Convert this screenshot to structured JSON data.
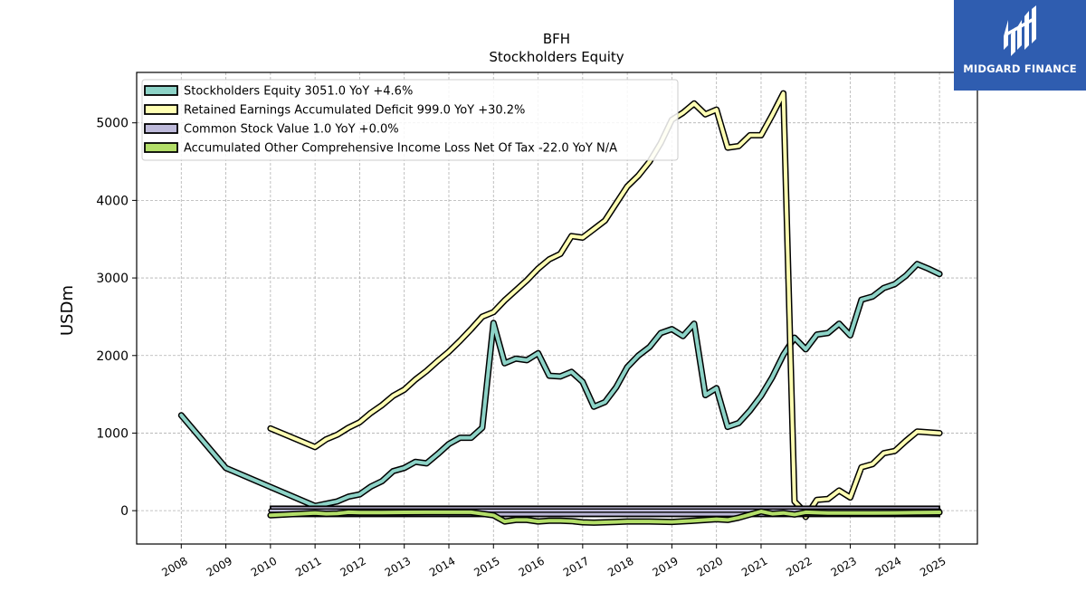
{
  "title": "BFH",
  "subtitle": "Stockholders  Equity",
  "brand": {
    "name": "MIDGARD FINANCE",
    "color": "#2f5db0"
  },
  "chart_data": {
    "type": "line",
    "ylabel": "USDm",
    "xlabel": "",
    "xlim": [
      2007.0,
      2025.85
    ],
    "ylim": [
      -430,
      5650
    ],
    "yticks": [
      0,
      1000,
      2000,
      3000,
      4000,
      5000
    ],
    "xticks": [
      2008,
      2009,
      2010,
      2011,
      2012,
      2013,
      2014,
      2015,
      2016,
      2017,
      2018,
      2019,
      2020,
      2021,
      2022,
      2023,
      2024,
      2025
    ],
    "grid": true,
    "legend_position": "top-left",
    "series": [
      {
        "name": "Stockholders Equity  3051.0 YoY +4.6%",
        "color": "#8dd3c7",
        "x": [
          2008.0,
          2009.0,
          2011.0,
          2011.5,
          2011.75,
          2012.0,
          2012.25,
          2012.5,
          2012.75,
          2013.0,
          2013.25,
          2013.5,
          2013.75,
          2014.0,
          2014.25,
          2014.5,
          2014.75,
          2015.0,
          2015.25,
          2015.5,
          2015.75,
          2016.0,
          2016.25,
          2016.5,
          2016.75,
          2017.0,
          2017.25,
          2017.5,
          2017.75,
          2018.0,
          2018.25,
          2018.5,
          2018.75,
          2019.0,
          2019.25,
          2019.5,
          2019.75,
          2020.0,
          2020.25,
          2020.5,
          2020.75,
          2021.0,
          2021.25,
          2021.5,
          2021.75,
          2022.0,
          2022.25,
          2022.5,
          2022.75,
          2023.0,
          2023.25,
          2023.5,
          2023.75,
          2024.0,
          2024.25,
          2024.5,
          2024.75,
          2025.0
        ],
        "y": [
          1230,
          550,
          60,
          120,
          180,
          210,
          310,
          380,
          510,
          550,
          630,
          610,
          730,
          860,
          940,
          940,
          1070,
          2420,
          1900,
          1960,
          1940,
          2030,
          1740,
          1730,
          1790,
          1660,
          1340,
          1400,
          1590,
          1850,
          2000,
          2110,
          2290,
          2340,
          2250,
          2410,
          1490,
          1580,
          1080,
          1130,
          1290,
          1480,
          1720,
          2010,
          2230,
          2080,
          2270,
          2290,
          2410,
          2260,
          2720,
          2760,
          2870,
          2920,
          3030,
          3180,
          3120,
          3051
        ]
      },
      {
        "name": "Retained Earnings Accumulated Deficit  999.0 YoY +30.2%",
        "color": "#ffffb3",
        "x": [
          2010.0,
          2011.0,
          2011.25,
          2011.5,
          2011.75,
          2012.0,
          2012.25,
          2012.5,
          2012.75,
          2013.0,
          2013.25,
          2013.5,
          2013.75,
          2014.0,
          2014.25,
          2014.5,
          2014.75,
          2015.0,
          2015.25,
          2015.5,
          2015.75,
          2016.0,
          2016.25,
          2016.5,
          2016.75,
          2017.0,
          2017.25,
          2017.5,
          2017.75,
          2018.0,
          2018.25,
          2018.5,
          2018.75,
          2019.0,
          2019.25,
          2019.5,
          2019.75,
          2020.0,
          2020.25,
          2020.5,
          2020.75,
          2021.0,
          2021.25,
          2021.5,
          2021.75,
          2021.9,
          2022.0,
          2022.25,
          2022.5,
          2022.75,
          2023.0,
          2023.25,
          2023.5,
          2023.75,
          2024.0,
          2024.25,
          2024.5,
          2024.75,
          2025.0
        ],
        "y": [
          1060,
          820,
          920,
          980,
          1070,
          1140,
          1260,
          1360,
          1480,
          1560,
          1690,
          1800,
          1930,
          2050,
          2190,
          2340,
          2500,
          2560,
          2710,
          2840,
          2970,
          3120,
          3240,
          3310,
          3540,
          3520,
          3630,
          3740,
          3960,
          4180,
          4320,
          4500,
          4740,
          5040,
          5130,
          5250,
          5110,
          5170,
          4680,
          4700,
          4840,
          4840,
          5100,
          5380,
          120,
          30,
          -80,
          140,
          150,
          260,
          170,
          560,
          600,
          740,
          770,
          900,
          1020,
          1010,
          999
        ]
      },
      {
        "name": "Common Stock Value  1.0 YoY +0.0%",
        "color": "#bebada",
        "x": [
          2010.0,
          2011.0,
          2012.0,
          2013.0,
          2014.0,
          2015.0,
          2016.0,
          2017.0,
          2018.0,
          2019.0,
          2020.0,
          2021.0,
          2022.0,
          2023.0,
          2024.0,
          2025.0
        ],
        "y": [
          1,
          1,
          1,
          1,
          1,
          1,
          1,
          1,
          1,
          1,
          1,
          1,
          1,
          1,
          1,
          1
        ]
      },
      {
        "name": "Accumulated Other Comprehensive Income Loss Net Of Tax  -22.0 YoY N/A",
        "color": "#b3de69",
        "x": [
          2010.0,
          2011.0,
          2011.25,
          2011.5,
          2011.75,
          2012.0,
          2012.5,
          2013.0,
          2013.5,
          2014.0,
          2014.5,
          2015.0,
          2015.25,
          2015.5,
          2015.75,
          2016.0,
          2016.25,
          2016.5,
          2016.75,
          2017.0,
          2017.25,
          2017.5,
          2017.75,
          2018.0,
          2018.5,
          2019.0,
          2019.5,
          2020.0,
          2020.25,
          2020.5,
          2020.75,
          2021.0,
          2021.25,
          2021.5,
          2021.75,
          2022.0,
          2022.5,
          2023.0,
          2023.5,
          2024.0,
          2024.5,
          2025.0
        ],
        "y": [
          -60,
          -30,
          -40,
          -35,
          -20,
          -25,
          -25,
          -22,
          -20,
          -20,
          -20,
          -60,
          -140,
          -120,
          -120,
          -140,
          -130,
          -130,
          -135,
          -150,
          -155,
          -150,
          -145,
          -140,
          -140,
          -145,
          -130,
          -110,
          -120,
          -90,
          -50,
          -10,
          -40,
          -30,
          -50,
          -20,
          -30,
          -30,
          -30,
          -28,
          -25,
          -22
        ]
      }
    ]
  }
}
